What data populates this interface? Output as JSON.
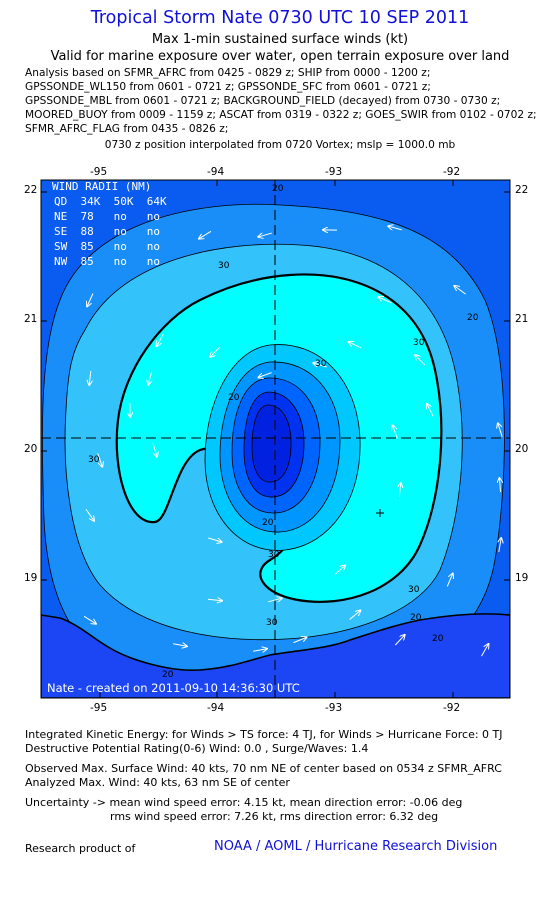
{
  "title": "Tropical Storm Nate 0730 UTC 10 SEP 2011",
  "subtitle1": "Max 1-min sustained surface winds (kt)",
  "subtitle2": "Valid for marine exposure over water, open terrain exposure over land",
  "analysis_lines": [
    "Analysis based on SFMR_AFRC from 0425 - 0829 z; SHIP from 0000 - 1200 z;",
    "GPSSONDE_WL150 from 0601 - 0721 z; GPSSONDE_SFC from 0601 - 0721 z;",
    "GPSSONDE_MBL from 0601 - 0721 z; BACKGROUND_FIELD (decayed) from 0730 - 0730 z;",
    "MOORED_BUOY from 0009 - 1159 z; ASCAT from 0319 - 0322 z; GOES_SWIR from 0102 - 0702 z;",
    "SFMR_AFRC_FLAG from 0435 - 0826 z;"
  ],
  "vortex_note": "0730 z position interpolated from 0720 Vortex; mslp = 1000.0 mb",
  "map": {
    "lon_ticks": [
      "-95",
      "-94",
      "-93",
      "-92"
    ],
    "lat_ticks": [
      "22",
      "21",
      "20",
      "19"
    ],
    "contour_labels": [
      "20",
      "30",
      "30",
      "30",
      "30",
      "30",
      "20",
      "20",
      "20",
      "20",
      "30",
      "30",
      "20",
      "20"
    ],
    "wind_radii": {
      "header": "WIND RADII (NM)",
      "columns": "QD  34K  50K  64K",
      "rows": [
        {
          "qd": "NE",
          "k34": "78",
          "k50": "no",
          "k64": "no"
        },
        {
          "qd": "SE",
          "k34": "88",
          "k50": "no",
          "k64": "no"
        },
        {
          "qd": "SW",
          "k34": "85",
          "k50": "no",
          "k64": "no"
        },
        {
          "qd": "NW",
          "k34": "85",
          "k50": "no",
          "k64": "no"
        }
      ]
    },
    "created_stamp": "Nate - created on 2011-09-10 14:36:30 UTC",
    "colors": {
      "outer": "#0a5cf0",
      "band_20_30": "#1a8ef8",
      "band_30_34": "#34c2fb",
      "core_34": "#00ffff",
      "inner1": "#00c8ff",
      "inner2": "#0096ff",
      "inner3": "#0064ff",
      "inner4": "#0032f0",
      "land": "#1c46f4"
    }
  },
  "footer": {
    "ike": "Integrated Kinetic Energy:  for Winds > TS force: 4 TJ,  for Winds > Hurricane Force: 0 TJ",
    "dpr": "Destructive Potential Rating(0-6)   Wind: 0.0 , Surge/Waves: 1.4",
    "observed": "Observed Max. Surface Wind: 40 kts, 70 nm NE of center based on 0534 z SFMR_AFRC",
    "analyzed": "Analyzed Max. Wind: 40 kts, 63 nm SE of center",
    "uncert1": "Uncertainty -> mean wind speed error: 4.15 kt,   mean direction error:  -0.06 deg",
    "uncert2": "rms wind speed error: 7.26 kt,   rms direction error: 6.32 deg",
    "research": "Research product of",
    "noaa": "NOAA / AOML / Hurricane Research Division"
  }
}
